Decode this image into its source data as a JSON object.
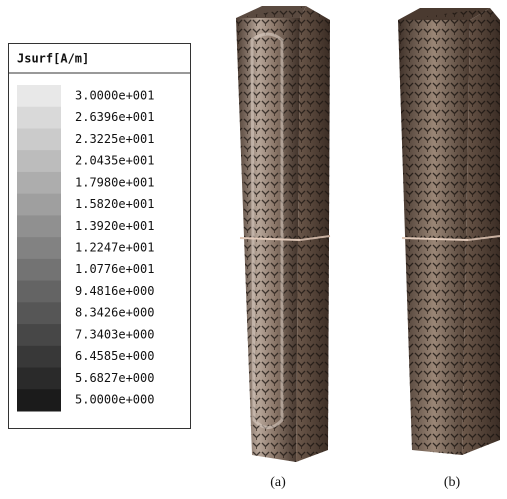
{
  "legend": {
    "title": "Jsurf[A/m]",
    "labels": [
      "3.0000e+001",
      "2.6396e+001",
      "2.3225e+001",
      "2.0435e+001",
      "1.7980e+001",
      "1.5820e+001",
      "1.3920e+001",
      "1.2247e+001",
      "1.0776e+001",
      "9.4816e+000",
      "8.3426e+000",
      "7.3403e+000",
      "6.4585e+000",
      "5.6827e+000",
      "5.0000e+000"
    ]
  },
  "panels": [
    {
      "caption": "(a)"
    },
    {
      "caption": "(b)"
    }
  ]
}
